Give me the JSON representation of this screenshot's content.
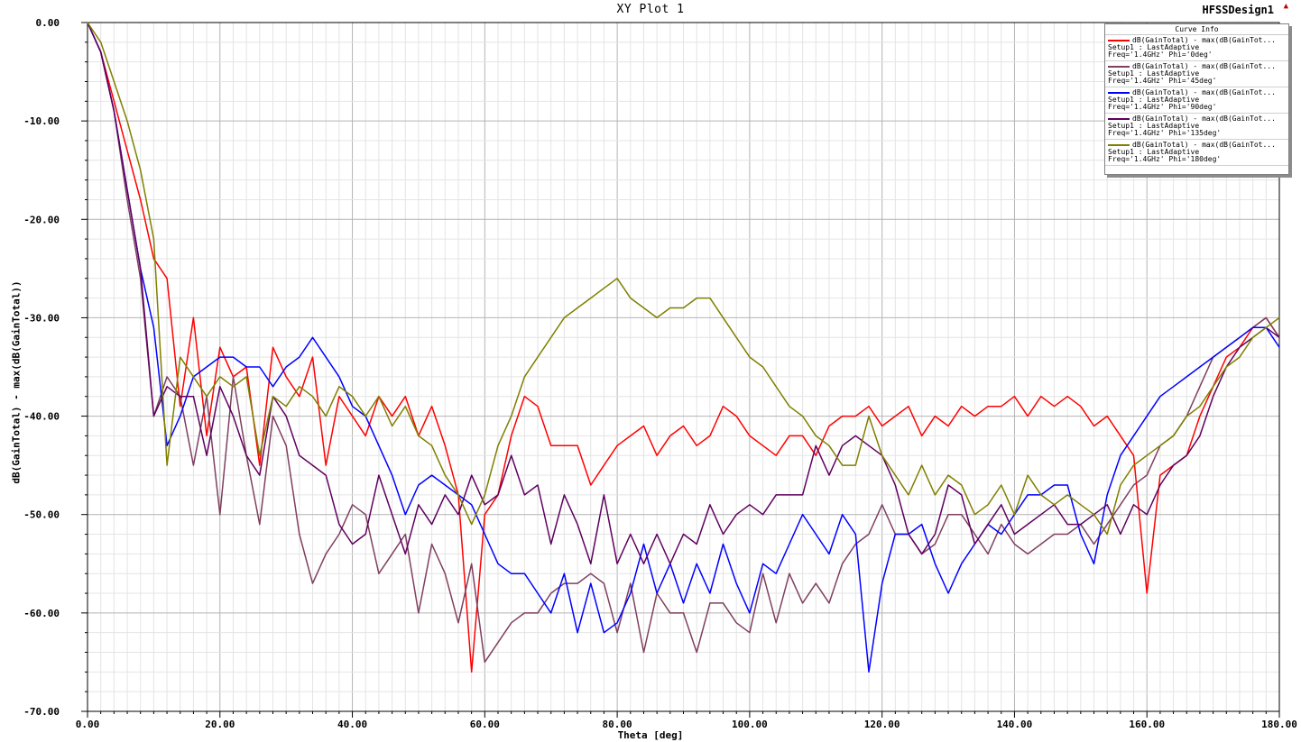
{
  "window": {
    "title": "XY Plot 1",
    "design_name": "HFSSDesign1",
    "corner_icon": "triangle-up-icon"
  },
  "legend": {
    "header": "Curve Info",
    "entries": [
      {
        "expr": "dB(GainTotal) - max(dB(GainTot...",
        "setup": "Setup1 : LastAdaptive",
        "params": "Freq='1.4GHz' Phi='0deg'",
        "color": "#ff0000"
      },
      {
        "expr": "dB(GainTotal) - max(dB(GainTot...",
        "setup": "Setup1 : LastAdaptive",
        "params": "Freq='1.4GHz' Phi='45deg'",
        "color": "#7f3f5f"
      },
      {
        "expr": "dB(GainTotal) - max(dB(GainTot...",
        "setup": "Setup1 : LastAdaptive",
        "params": "Freq='1.4GHz' Phi='90deg'",
        "color": "#0000ff"
      },
      {
        "expr": "dB(GainTotal) - max(dB(GainTot...",
        "setup": "Setup1 : LastAdaptive",
        "params": "Freq='1.4GHz' Phi='135deg'",
        "color": "#5f005f"
      },
      {
        "expr": "dB(GainTotal) - max(dB(GainTot...",
        "setup": "Setup1 : LastAdaptive",
        "params": "Freq='1.4GHz' Phi='180deg'",
        "color": "#7f7f00"
      }
    ]
  },
  "chart_data": {
    "type": "line",
    "title": "XY Plot 1",
    "xlabel": "Theta [deg]",
    "ylabel": "dB(GainTotal) - max(dB(GainTotal))",
    "xlim": [
      0,
      180
    ],
    "ylim": [
      -70,
      0
    ],
    "xticks": [
      0,
      20,
      40,
      60,
      80,
      100,
      120,
      140,
      160,
      180
    ],
    "xtick_labels": [
      "0.00",
      "20.00",
      "40.00",
      "60.00",
      "80.00",
      "100.00",
      "120.00",
      "140.00",
      "160.00",
      "180.00"
    ],
    "yticks": [
      0,
      -10,
      -20,
      -30,
      -40,
      -50,
      -60,
      -70
    ],
    "ytick_labels": [
      "0.00",
      "-10.00",
      "-20.00",
      "-30.00",
      "-40.00",
      "-50.00",
      "-60.00",
      "-70.00"
    ],
    "grid": true,
    "legend_position": "top-right",
    "x": [
      0,
      2,
      4,
      6,
      8,
      10,
      12,
      14,
      16,
      18,
      20,
      22,
      24,
      26,
      28,
      30,
      32,
      34,
      36,
      38,
      40,
      42,
      44,
      46,
      48,
      50,
      52,
      54,
      56,
      58,
      60,
      62,
      64,
      66,
      68,
      70,
      72,
      74,
      76,
      78,
      80,
      82,
      84,
      86,
      88,
      90,
      92,
      94,
      96,
      98,
      100,
      102,
      104,
      106,
      108,
      110,
      112,
      114,
      116,
      118,
      120,
      122,
      124,
      126,
      128,
      130,
      132,
      134,
      136,
      138,
      140,
      142,
      144,
      146,
      148,
      150,
      152,
      154,
      156,
      158,
      160,
      162,
      164,
      166,
      168,
      170,
      172,
      174,
      176,
      178,
      180
    ],
    "series": [
      {
        "name": "dB(GainTotal) - max(dB(GainTot...",
        "color": "#ff0000",
        "values": [
          0,
          -3,
          -8,
          -13,
          -18,
          -24,
          -26,
          -39,
          -30,
          -42,
          -33,
          -36,
          -35,
          -45,
          -33,
          -36,
          -38,
          -34,
          -45,
          -38,
          -40,
          -42,
          -38,
          -40,
          -38,
          -42,
          -39,
          -43,
          -48,
          -66,
          -50,
          -48,
          -42,
          -38,
          -39,
          -43,
          -43,
          -43,
          -47,
          -45,
          -43,
          -42,
          -41,
          -44,
          -42,
          -41,
          -43,
          -42,
          -39,
          -40,
          -42,
          -43,
          -44,
          -42,
          -42,
          -44,
          -41,
          -40,
          -40,
          -39,
          -41,
          -40,
          -39,
          -42,
          -40,
          -41,
          -39,
          -40,
          -39,
          -39,
          -38,
          -40,
          -38,
          -39,
          -38,
          -39,
          -41,
          -40,
          -42,
          -44,
          -58,
          -46,
          -45,
          -44,
          -40,
          -37,
          -34,
          -33,
          -31,
          -30,
          -32
        ]
      },
      {
        "name": "dB(GainTotal) - max(dB(GainTot...",
        "color": "#7f3f5f",
        "values": [
          0,
          -3,
          -9,
          -18,
          -26,
          -40,
          -36,
          -38,
          -45,
          -38,
          -50,
          -36,
          -44,
          -51,
          -40,
          -43,
          -52,
          -57,
          -54,
          -52,
          -49,
          -50,
          -56,
          -54,
          -52,
          -60,
          -53,
          -56,
          -61,
          -55,
          -65,
          -63,
          -61,
          -60,
          -60,
          -58,
          -57,
          -57,
          -56,
          -57,
          -62,
          -57,
          -64,
          -58,
          -60,
          -60,
          -64,
          -59,
          -59,
          -61,
          -62,
          -56,
          -61,
          -56,
          -59,
          -57,
          -59,
          -55,
          -53,
          -52,
          -49,
          -52,
          -52,
          -54,
          -53,
          -50,
          -50,
          -52,
          -54,
          -51,
          -53,
          -54,
          -53,
          -52,
          -52,
          -51,
          -53,
          -51,
          -49,
          -47,
          -46,
          -43,
          -42,
          -40,
          -37,
          -34,
          -33,
          -32,
          -31,
          -30,
          -32
        ]
      },
      {
        "name": "dB(GainTotal) - max(dB(GainTot...",
        "color": "#0000ff",
        "values": [
          0,
          -3,
          -9,
          -17,
          -25,
          -31,
          -43,
          -40,
          -36,
          -35,
          -34,
          -34,
          -35,
          -35,
          -37,
          -35,
          -34,
          -32,
          -34,
          -36,
          -39,
          -40,
          -43,
          -46,
          -50,
          -47,
          -46,
          -47,
          -48,
          -49,
          -52,
          -55,
          -56,
          -56,
          -58,
          -60,
          -56,
          -62,
          -57,
          -62,
          -61,
          -58,
          -53,
          -58,
          -55,
          -59,
          -55,
          -58,
          -53,
          -57,
          -60,
          -55,
          -56,
          -53,
          -50,
          -52,
          -54,
          -50,
          -52,
          -66,
          -57,
          -52,
          -52,
          -51,
          -55,
          -58,
          -55,
          -53,
          -51,
          -52,
          -50,
          -48,
          -48,
          -47,
          -47,
          -52,
          -55,
          -48,
          -44,
          -42,
          -40,
          -38,
          -37,
          -36,
          -35,
          -34,
          -33,
          -32,
          -31,
          -31,
          -33
        ]
      },
      {
        "name": "dB(GainTotal) - max(dB(GainTot...",
        "color": "#5f005f",
        "values": [
          0,
          -3,
          -9,
          -17,
          -25,
          -40,
          -37,
          -38,
          -38,
          -44,
          -37,
          -40,
          -44,
          -46,
          -38,
          -40,
          -44,
          -45,
          -46,
          -51,
          -53,
          -52,
          -46,
          -50,
          -54,
          -49,
          -51,
          -48,
          -50,
          -46,
          -49,
          -48,
          -44,
          -48,
          -47,
          -53,
          -48,
          -51,
          -55,
          -48,
          -55,
          -52,
          -55,
          -52,
          -55,
          -52,
          -53,
          -49,
          -52,
          -50,
          -49,
          -50,
          -48,
          -48,
          -48,
          -43,
          -46,
          -43,
          -42,
          -43,
          -44,
          -47,
          -52,
          -54,
          -52,
          -47,
          -48,
          -53,
          -51,
          -49,
          -52,
          -51,
          -50,
          -49,
          -51,
          -51,
          -50,
          -49,
          -52,
          -49,
          -50,
          -47,
          -45,
          -44,
          -42,
          -38,
          -35,
          -33,
          -32,
          -31,
          -32
        ]
      },
      {
        "name": "dB(GainTotal) - max(dB(GainTot...",
        "color": "#7f7f00",
        "values": [
          0,
          -2,
          -6,
          -10,
          -15,
          -22,
          -45,
          -34,
          -36,
          -38,
          -36,
          -37,
          -36,
          -44,
          -38,
          -39,
          -37,
          -38,
          -40,
          -37,
          -38,
          -40,
          -38,
          -41,
          -39,
          -42,
          -43,
          -46,
          -48,
          -51,
          -48,
          -43,
          -40,
          -36,
          -34,
          -32,
          -30,
          -29,
          -28,
          -27,
          -26,
          -28,
          -29,
          -30,
          -29,
          -29,
          -28,
          -28,
          -30,
          -32,
          -34,
          -35,
          -37,
          -39,
          -40,
          -42,
          -43,
          -45,
          -45,
          -40,
          -44,
          -46,
          -48,
          -45,
          -48,
          -46,
          -47,
          -50,
          -49,
          -47,
          -50,
          -46,
          -48,
          -49,
          -48,
          -49,
          -50,
          -52,
          -47,
          -45,
          -44,
          -43,
          -42,
          -40,
          -39,
          -37,
          -35,
          -34,
          -32,
          -31,
          -30
        ]
      }
    ]
  }
}
